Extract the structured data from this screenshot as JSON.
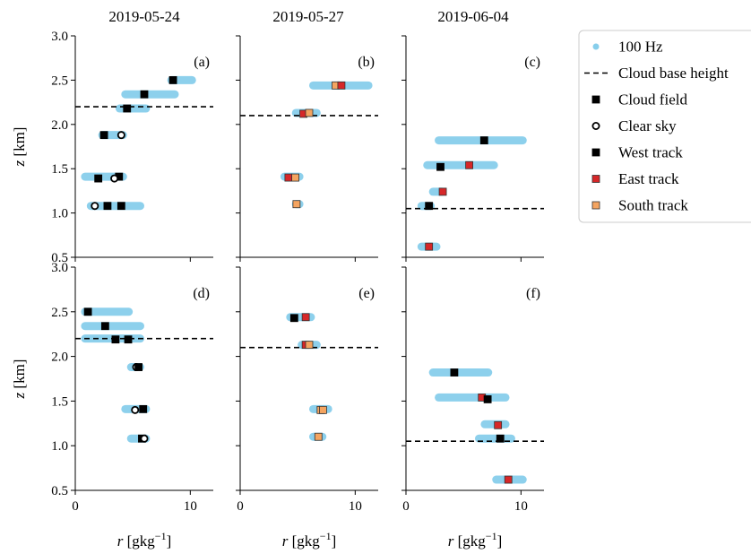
{
  "figure": {
    "columns": [
      "2019-05-24",
      "2019-05-27",
      "2019-06-04"
    ],
    "xlabel": "r [gkg−1]",
    "ylabel": "z [km]",
    "xlim": [
      0,
      12
    ],
    "ylim": [
      0.5,
      3.0
    ],
    "xticks": [
      0,
      10
    ],
    "yticks": [
      0.5,
      1.0,
      1.5,
      2.0,
      2.5,
      3.0
    ],
    "legend": {
      "placement": "upper-right outside",
      "entries": [
        {
          "label": "100 Hz",
          "marker": "dot",
          "color": "#87ceeb"
        },
        {
          "label": "Cloud base height",
          "marker": "dashed-line",
          "color": "#000000"
        },
        {
          "label": "Cloud field",
          "marker": "square",
          "color": "#000000"
        },
        {
          "label": "Clear sky",
          "marker": "open-circle",
          "color": "#000000"
        },
        {
          "label": "West track",
          "marker": "square",
          "color": "#000000"
        },
        {
          "label": "East track",
          "marker": "square",
          "color": "#d62728"
        },
        {
          "label": "South track",
          "marker": "square",
          "color": "#f4a460"
        }
      ]
    },
    "colors": {
      "hz": "#87ceeb",
      "west": "#000000",
      "east": "#d62728",
      "south": "#f4a460"
    }
  },
  "chart_data": [
    {
      "type": "scatter",
      "panel": "(a)",
      "title": "2019-05-24",
      "cloud_base": 2.2,
      "bands": [
        [
          8.0,
          10.5,
          2.5
        ],
        [
          4.0,
          9.0,
          2.34
        ],
        [
          3.5,
          6.5,
          2.18
        ],
        [
          2.0,
          4.5,
          1.88
        ],
        [
          0.5,
          4.5,
          1.41
        ],
        [
          1.0,
          6.0,
          1.08
        ]
      ],
      "points": [
        {
          "x": 8.5,
          "y": 2.5,
          "kind": "cloud"
        },
        {
          "x": 6.0,
          "y": 2.34,
          "kind": "cloud"
        },
        {
          "x": 4.5,
          "y": 2.18,
          "kind": "cloud"
        },
        {
          "x": 2.5,
          "y": 1.88,
          "kind": "cloud"
        },
        {
          "x": 4.0,
          "y": 1.88,
          "kind": "clear"
        },
        {
          "x": 2.0,
          "y": 1.39,
          "kind": "cloud"
        },
        {
          "x": 3.8,
          "y": 1.41,
          "kind": "cloud"
        },
        {
          "x": 3.4,
          "y": 1.39,
          "kind": "clear"
        },
        {
          "x": 2.8,
          "y": 1.08,
          "kind": "cloud"
        },
        {
          "x": 1.7,
          "y": 1.08,
          "kind": "clear"
        },
        {
          "x": 4.0,
          "y": 1.08,
          "kind": "cloud"
        }
      ]
    },
    {
      "type": "scatter",
      "panel": "(b)",
      "title": "2019-05-27",
      "cloud_base": 2.1,
      "bands": [
        [
          6.0,
          11.5,
          2.44
        ],
        [
          4.5,
          7.0,
          2.13
        ],
        [
          3.5,
          5.5,
          1.41
        ],
        [
          4.5,
          5.5,
          1.1
        ]
      ],
      "points": [
        {
          "x": 8.3,
          "y": 2.44,
          "kind": "south"
        },
        {
          "x": 8.8,
          "y": 2.44,
          "kind": "east"
        },
        {
          "x": 5.5,
          "y": 2.12,
          "kind": "east"
        },
        {
          "x": 6.0,
          "y": 2.13,
          "kind": "south"
        },
        {
          "x": 4.2,
          "y": 1.4,
          "kind": "east"
        },
        {
          "x": 4.8,
          "y": 1.4,
          "kind": "south"
        },
        {
          "x": 4.9,
          "y": 1.1,
          "kind": "south"
        }
      ]
    },
    {
      "type": "scatter",
      "panel": "(c)",
      "title": "2019-06-04",
      "cloud_base": 1.05,
      "bands": [
        [
          2.5,
          10.5,
          1.82
        ],
        [
          1.5,
          8.0,
          1.54
        ],
        [
          2.0,
          3.5,
          1.24
        ],
        [
          1.0,
          2.5,
          1.08
        ],
        [
          1.0,
          3.0,
          0.62
        ]
      ],
      "points": [
        {
          "x": 6.8,
          "y": 1.82,
          "kind": "west"
        },
        {
          "x": 3.0,
          "y": 1.52,
          "kind": "west"
        },
        {
          "x": 5.5,
          "y": 1.54,
          "kind": "east"
        },
        {
          "x": 3.2,
          "y": 1.24,
          "kind": "east"
        },
        {
          "x": 2.0,
          "y": 1.08,
          "kind": "west"
        },
        {
          "x": 2.0,
          "y": 0.62,
          "kind": "east"
        }
      ]
    },
    {
      "type": "scatter",
      "panel": "(d)",
      "title": "",
      "cloud_base": 2.2,
      "bands": [
        [
          0.5,
          5.0,
          2.5
        ],
        [
          0.5,
          6.0,
          2.34
        ],
        [
          0.5,
          6.0,
          2.2
        ],
        [
          4.5,
          6.0,
          1.88
        ],
        [
          4.0,
          6.5,
          1.41
        ],
        [
          4.5,
          6.5,
          1.08
        ]
      ],
      "points": [
        {
          "x": 1.1,
          "y": 2.5,
          "kind": "cloud"
        },
        {
          "x": 2.6,
          "y": 2.34,
          "kind": "cloud"
        },
        {
          "x": 3.5,
          "y": 2.19,
          "kind": "cloud"
        },
        {
          "x": 4.6,
          "y": 2.19,
          "kind": "cloud"
        },
        {
          "x": 5.3,
          "y": 1.88,
          "kind": "clear"
        },
        {
          "x": 5.5,
          "y": 1.88,
          "kind": "cloud"
        },
        {
          "x": 5.2,
          "y": 1.4,
          "kind": "clear"
        },
        {
          "x": 5.9,
          "y": 1.41,
          "kind": "cloud"
        },
        {
          "x": 5.8,
          "y": 1.08,
          "kind": "cloud"
        },
        {
          "x": 6.0,
          "y": 1.08,
          "kind": "clear"
        }
      ]
    },
    {
      "type": "scatter",
      "panel": "(e)",
      "title": "",
      "cloud_base": 2.1,
      "bands": [
        [
          4.0,
          6.5,
          2.44
        ],
        [
          5.0,
          7.0,
          2.13
        ],
        [
          6.0,
          8.0,
          1.41
        ],
        [
          6.0,
          7.5,
          1.1
        ]
      ],
      "points": [
        {
          "x": 4.7,
          "y": 2.43,
          "kind": "west"
        },
        {
          "x": 5.7,
          "y": 2.44,
          "kind": "east"
        },
        {
          "x": 5.7,
          "y": 2.13,
          "kind": "east"
        },
        {
          "x": 6.0,
          "y": 2.13,
          "kind": "south"
        },
        {
          "x": 7.0,
          "y": 1.4,
          "kind": "south"
        },
        {
          "x": 7.2,
          "y": 1.4,
          "kind": "south"
        },
        {
          "x": 6.8,
          "y": 1.1,
          "kind": "south"
        }
      ]
    },
    {
      "type": "scatter",
      "panel": "(f)",
      "title": "",
      "cloud_base": 1.05,
      "bands": [
        [
          2.0,
          7.5,
          1.82
        ],
        [
          2.5,
          9.0,
          1.54
        ],
        [
          6.5,
          9.0,
          1.24
        ],
        [
          6.0,
          9.5,
          1.08
        ],
        [
          7.5,
          10.5,
          0.62
        ]
      ],
      "points": [
        {
          "x": 4.2,
          "y": 1.82,
          "kind": "west"
        },
        {
          "x": 6.6,
          "y": 1.54,
          "kind": "east"
        },
        {
          "x": 7.1,
          "y": 1.52,
          "kind": "west"
        },
        {
          "x": 8.0,
          "y": 1.23,
          "kind": "east"
        },
        {
          "x": 8.2,
          "y": 1.08,
          "kind": "west"
        },
        {
          "x": 8.9,
          "y": 0.62,
          "kind": "east"
        }
      ]
    }
  ]
}
